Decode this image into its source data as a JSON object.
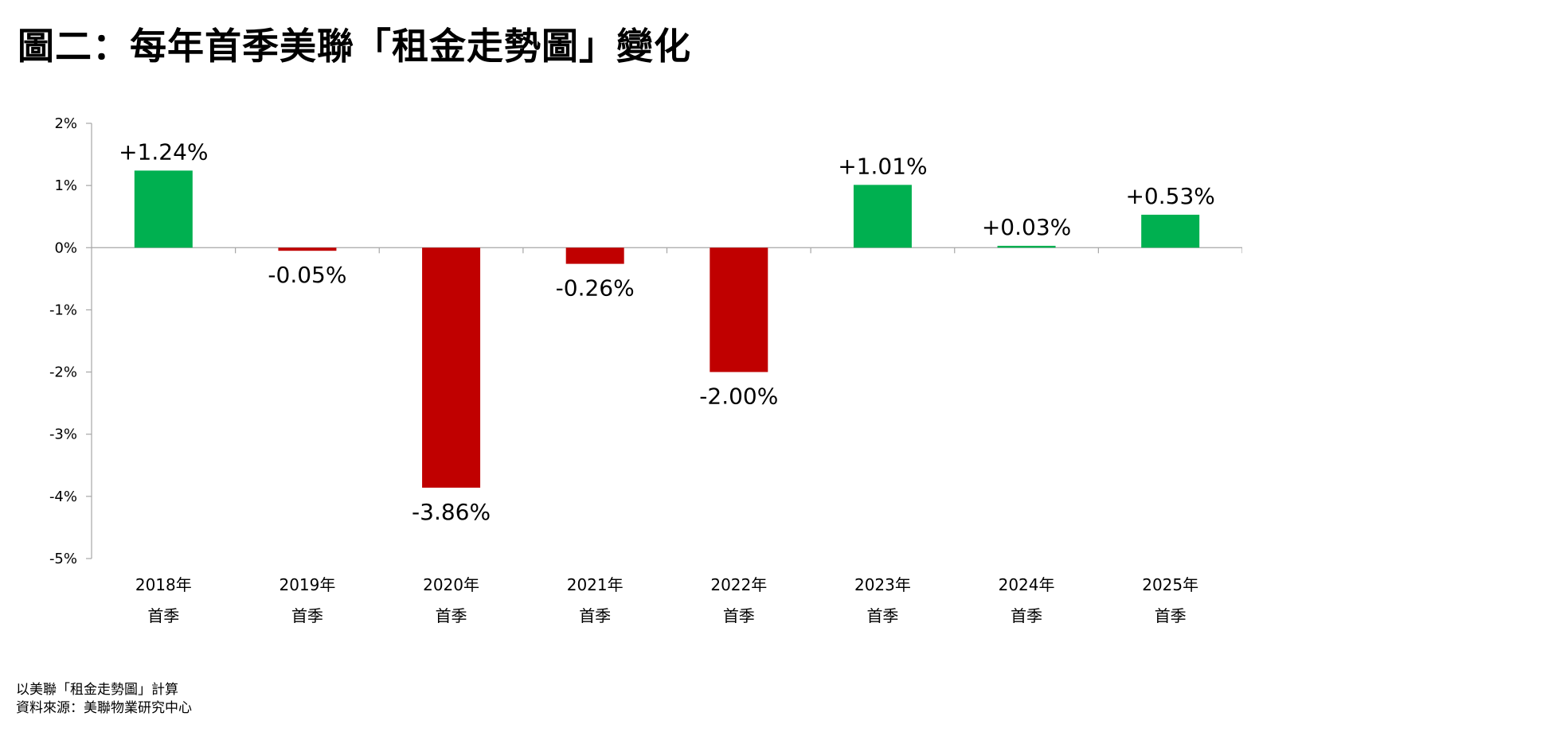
{
  "title": "圖二：每年首季美聯「租金走勢圖」變化",
  "colors": {
    "positive": "#00B050",
    "negative": "#C00000",
    "axis": "#A6A6A6"
  },
  "chart_data": {
    "type": "bar",
    "categories": [
      [
        "2018年",
        "首季"
      ],
      [
        "2019年",
        "首季"
      ],
      [
        "2020年",
        "首季"
      ],
      [
        "2021年",
        "首季"
      ],
      [
        "2022年",
        "首季"
      ],
      [
        "2023年",
        "首季"
      ],
      [
        "2024年",
        "首季"
      ],
      [
        "2025年",
        "首季"
      ]
    ],
    "values": [
      1.24,
      -0.05,
      -3.86,
      -0.26,
      -2.0,
      1.01,
      0.03,
      0.53
    ],
    "data_labels": [
      "+1.24%",
      "-0.05%",
      "-3.86%",
      "-0.26%",
      "-2.00%",
      "+1.01%",
      "+0.03%",
      "+0.53%"
    ],
    "ylim": [
      -5,
      2
    ],
    "yticks": [
      2,
      1,
      0,
      -1,
      -2,
      -3,
      -4,
      -5
    ],
    "ytick_labels": [
      "2%",
      "1%",
      "0%",
      "-1%",
      "-2%",
      "-3%",
      "-4%",
      "-5%"
    ],
    "grid": false,
    "legend": "none"
  },
  "footer": {
    "note": "以美聯「租金走勢圖」計算",
    "source": "資料來源：美聯物業研究中心"
  }
}
